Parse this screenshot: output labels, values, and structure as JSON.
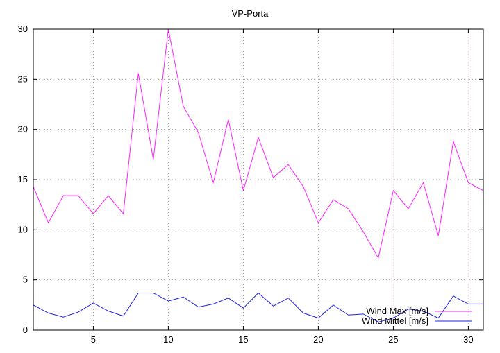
{
  "chart_data": {
    "type": "line",
    "title": "VP-Porta",
    "xlabel": "",
    "ylabel": "",
    "xlim": [
      1,
      31
    ],
    "ylim": [
      0,
      30
    ],
    "xticks": [
      5,
      10,
      15,
      20,
      25,
      30
    ],
    "yticks": [
      0,
      5,
      10,
      15,
      20,
      25,
      30
    ],
    "grid": true,
    "legend_position": "bottom-right",
    "x": [
      1,
      2,
      3,
      4,
      5,
      6,
      7,
      8,
      9,
      10,
      11,
      12,
      13,
      14,
      15,
      16,
      17,
      18,
      19,
      20,
      21,
      22,
      23,
      24,
      25,
      26,
      27,
      28,
      29,
      30,
      31
    ],
    "series": [
      {
        "name": "Wind Max [m/s]",
        "color": "#ff20ff",
        "values": [
          14.3,
          10.7,
          13.4,
          13.4,
          11.6,
          13.4,
          11.6,
          25.6,
          17.0,
          30.0,
          22.3,
          19.7,
          14.7,
          21.0,
          13.9,
          19.2,
          15.2,
          16.5,
          14.3,
          10.7,
          13.0,
          12.1,
          9.8,
          7.2,
          13.9,
          12.1,
          14.7,
          9.4,
          18.8,
          14.7,
          13.9
        ]
      },
      {
        "name": "Wind Mittel [m/s]",
        "color": "#2020e0",
        "values": [
          2.5,
          1.7,
          1.3,
          1.8,
          2.7,
          1.9,
          1.4,
          3.7,
          3.7,
          2.9,
          3.3,
          2.3,
          2.6,
          3.2,
          2.2,
          3.7,
          2.4,
          3.2,
          1.7,
          1.2,
          2.5,
          1.5,
          1.6,
          0.8,
          1.2,
          2.1,
          1.9,
          1.2,
          3.4,
          2.6,
          2.6
        ]
      }
    ]
  }
}
